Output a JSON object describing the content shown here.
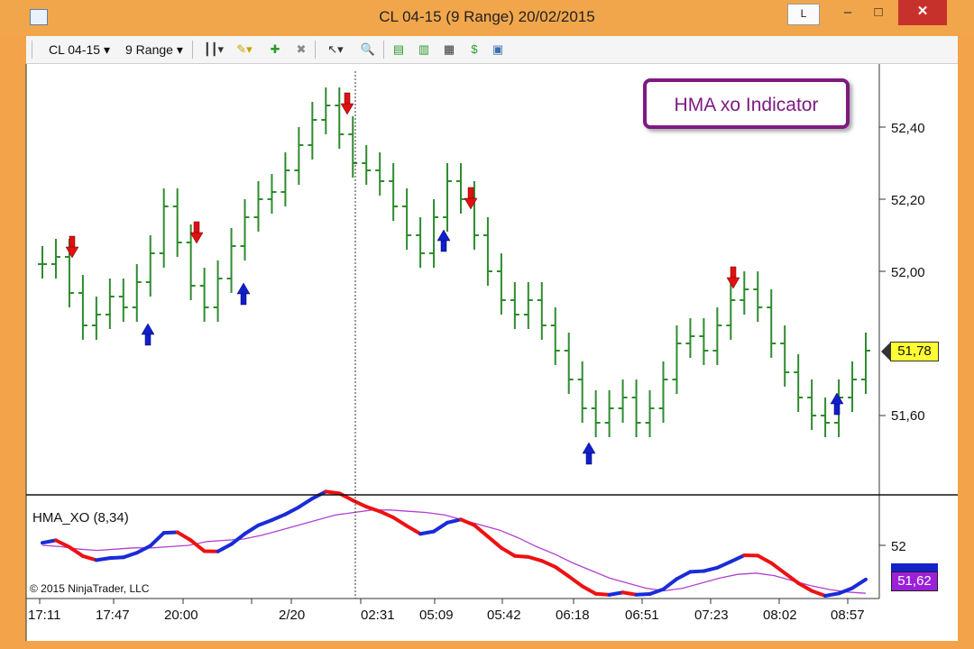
{
  "window": {
    "title": "CL 04-15 (9 Range)  20/02/2015",
    "btn_l": "L",
    "btn_min": "–",
    "btn_max": "□",
    "btn_close": "✕"
  },
  "toolbar": {
    "instrument": "CL 04-15 ▾",
    "bar_type": "9 Range ▾"
  },
  "badge": "HMA xo Indicator",
  "price_axis": [
    "52,40",
    "52,20",
    "52,00",
    "51,60"
  ],
  "last_price": "51,78",
  "indicator": {
    "label": "HMA_XO (8,34)",
    "axis_label": "52",
    "last_value": "51,62"
  },
  "copyright": "© 2015 NinjaTrader, LLC",
  "time_axis": [
    "17:11",
    "17:47",
    "20:00",
    "2/20",
    "02:31",
    "05:09",
    "05:42",
    "06:18",
    "06:51",
    "07:23",
    "08:02",
    "08:57"
  ],
  "colors": {
    "bars": "#2e8b2e",
    "sell_arrow": "#e01010",
    "buy_arrow": "#1020c8",
    "hma_up": "#1a2bd8",
    "hma_down": "#ee1111",
    "slow_line": "#b040d0",
    "badge_border": "#7e1a82",
    "titlebar": "#f2a64b"
  },
  "chart_data": {
    "type": "line",
    "series": [
      {
        "values": [
          52.02,
          52.04,
          51.94,
          51.85,
          51.88,
          51.93,
          51.9,
          51.97,
          52.05,
          52.18,
          52.08,
          51.96,
          51.9,
          51.98,
          52.07,
          52.15,
          52.2,
          52.22,
          52.28,
          52.35,
          52.42,
          52.46,
          52.38,
          52.3,
          52.28,
          52.25,
          52.18,
          52.1,
          52.05,
          52.15,
          52.25,
          52.2,
          52.1,
          52.0,
          51.92,
          51.88,
          51.92,
          51.85,
          51.78,
          51.7,
          51.62,
          51.58,
          51.62,
          51.65,
          51.58,
          51.62,
          51.7,
          51.8,
          51.82,
          51.78,
          51.85,
          51.92,
          51.95,
          51.9,
          51.8,
          51.72,
          51.65,
          51.6,
          51.58,
          51.65,
          51.7,
          51.78
        ]
      },
      {
        "values": [
          52.0,
          51.99,
          51.97,
          51.96,
          51.97,
          51.98,
          51.98,
          51.99,
          52.0,
          52.03,
          52.04,
          52.05,
          52.08,
          52.12,
          52.16,
          52.2,
          52.24,
          52.26,
          52.28,
          52.28,
          52.27,
          52.26,
          52.24,
          52.2,
          52.16,
          52.12,
          52.06,
          51.99,
          51.93,
          51.86,
          51.8,
          51.74,
          51.7,
          51.66,
          51.64,
          51.66,
          51.7,
          51.74,
          51.77,
          51.78,
          51.76,
          51.72,
          51.68,
          51.65,
          51.63,
          51.62
        ]
      }
    ],
    "sell_signals": 5,
    "buy_signals": 5,
    "grid": false
  }
}
